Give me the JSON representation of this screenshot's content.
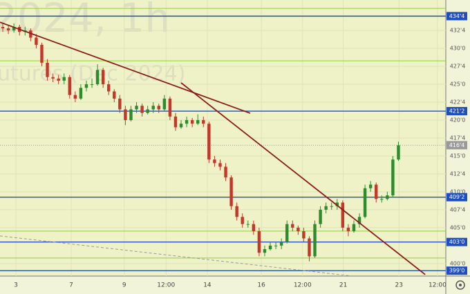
{
  "chart_data": {
    "type": "candlestick",
    "watermark": [
      "2024, 1h",
      "utures (Dec 2024)"
    ],
    "up_color": "#2e8b2e",
    "down_color": "#c0392b",
    "background": "#eef2c6",
    "grid": true,
    "xlim": [
      0,
      80
    ],
    "xticks": [
      {
        "value": 2.85,
        "label": "3"
      },
      {
        "value": 12.78,
        "label": "7"
      },
      {
        "value": 22.3,
        "label": "9"
      },
      {
        "value": 29.8,
        "label": "12:00"
      },
      {
        "value": 37.2,
        "label": "14"
      },
      {
        "value": 46.9,
        "label": "16"
      },
      {
        "value": 54.3,
        "label": "12:00"
      },
      {
        "value": 61.6,
        "label": "21"
      },
      {
        "value": 71.6,
        "label": "23"
      },
      {
        "value": 78.5,
        "label": "12:00"
      }
    ],
    "ylim": [
      398.25,
      436.75
    ],
    "yticks": [
      {
        "value": 432.5,
        "label": "432'4"
      },
      {
        "value": 430,
        "label": "430'0"
      },
      {
        "value": 427.5,
        "label": "427'4"
      },
      {
        "value": 425,
        "label": "425'0"
      },
      {
        "value": 422.5,
        "label": "422'4"
      },
      {
        "value": 420,
        "label": "420'0"
      },
      {
        "value": 417.5,
        "label": "417'4"
      },
      {
        "value": 415,
        "label": "415'0"
      },
      {
        "value": 412.5,
        "label": "412'4"
      },
      {
        "value": 410,
        "label": "410'0"
      },
      {
        "value": 407.5,
        "label": "407'4"
      },
      {
        "value": 405,
        "label": "405'0"
      },
      {
        "value": 400,
        "label": "400'0"
      }
    ],
    "levels": [
      {
        "value": 434.5,
        "label": "434'4",
        "color": "#1f4fbf"
      },
      {
        "value": 421.25,
        "label": "421'2",
        "color": "#1f4fbf"
      },
      {
        "value": 409.25,
        "label": "409'2",
        "color": "#1f4fbf"
      },
      {
        "value": 403,
        "label": "403'0",
        "color": "#1f4fbf"
      },
      {
        "value": 399,
        "label": "399'0",
        "color": "#1f4fbf"
      },
      {
        "value": 416.5,
        "label": "416'4",
        "color": "#9a9a9a"
      }
    ],
    "support_lines": [
      {
        "value": 435.58,
        "color": "#8fcf3f"
      },
      {
        "value": 428.27,
        "color": "#8fcf3f"
      },
      {
        "value": 404.52,
        "color": "#8fcf3f"
      },
      {
        "value": 400.77,
        "color": "#8fcf3f"
      }
    ],
    "trendlines": [
      {
        "x": [
          0,
          44.9
        ],
        "y": [
          433.65,
          420.96
        ],
        "color": "#8b1a1a",
        "dash": false
      },
      {
        "x": [
          32.5,
          76.3
        ],
        "y": [
          425.2,
          398.46
        ],
        "color": "#8b1a1a",
        "dash": false
      },
      {
        "x": [
          0,
          62.6
        ],
        "y": [
          403.85,
          398.3
        ],
        "color": "#999999",
        "dash": true
      }
    ],
    "ohlc": [
      [
        433,
        433.5,
        432.3,
        432.8
      ],
      [
        432.8,
        433.3,
        432,
        432.5
      ],
      [
        432.5,
        433.5,
        432.2,
        433
      ],
      [
        433,
        433.3,
        431.8,
        432.3
      ],
      [
        432.3,
        433,
        431.8,
        432.5
      ],
      [
        432.5,
        432.8,
        431,
        431.5
      ],
      [
        431.5,
        432,
        430,
        430.5
      ],
      [
        430.5,
        430.8,
        427.5,
        428
      ],
      [
        428,
        428.5,
        425.5,
        426
      ],
      [
        426,
        426.5,
        425.3,
        425.8
      ],
      [
        425.8,
        426.3,
        425,
        425.5
      ],
      [
        425.5,
        426.5,
        425,
        426
      ],
      [
        426,
        426.3,
        423,
        423.5
      ],
      [
        423.5,
        424,
        422.5,
        423
      ],
      [
        423,
        425,
        422.8,
        424.5
      ],
      [
        424.5,
        425.5,
        424,
        425
      ],
      [
        425,
        425.8,
        424.5,
        425
      ],
      [
        425,
        427.8,
        424.8,
        427
      ],
      [
        427,
        427.3,
        424.5,
        425
      ],
      [
        425,
        425.5,
        423.5,
        424
      ],
      [
        424,
        424.3,
        422.5,
        423
      ],
      [
        423,
        423.5,
        421,
        421.5
      ],
      [
        421.5,
        422,
        419.3,
        420
      ],
      [
        420,
        422,
        419.8,
        421.5
      ],
      [
        421.5,
        422.5,
        421,
        422
      ],
      [
        422,
        422.3,
        420.5,
        421
      ],
      [
        421,
        422,
        420.8,
        421.5
      ],
      [
        421.5,
        422.5,
        421,
        422
      ],
      [
        422,
        422.3,
        421,
        421.5
      ],
      [
        421.5,
        423.5,
        421.3,
        423
      ],
      [
        423,
        423.3,
        420,
        420.5
      ],
      [
        420.5,
        421,
        418.5,
        419
      ],
      [
        419,
        420,
        418.8,
        419.5
      ],
      [
        419.5,
        420.5,
        419,
        420
      ],
      [
        420,
        420.3,
        419,
        419.5
      ],
      [
        419.5,
        420.8,
        419.3,
        420
      ],
      [
        420,
        420.5,
        419,
        419.5
      ],
      [
        419.5,
        419.8,
        414,
        414.5
      ],
      [
        414.5,
        415,
        413.5,
        414
      ],
      [
        414,
        414.5,
        413,
        413.5
      ],
      [
        413.5,
        414,
        411.5,
        412
      ],
      [
        412,
        412.3,
        407.5,
        408
      ],
      [
        408,
        408.5,
        406,
        406.5
      ],
      [
        406.5,
        407,
        405,
        405.5
      ],
      [
        405.5,
        406,
        405,
        405.5
      ],
      [
        405.5,
        406,
        404,
        404.5
      ],
      [
        404.5,
        405,
        401,
        401.5
      ],
      [
        401.5,
        402.5,
        401,
        402
      ],
      [
        402,
        403,
        401.8,
        402.5
      ],
      [
        402.5,
        403,
        402,
        402.5
      ],
      [
        402.5,
        403.5,
        402,
        403
      ],
      [
        403,
        406,
        402.8,
        405.5
      ],
      [
        405.5,
        406,
        404.5,
        405
      ],
      [
        405,
        405.3,
        404,
        404.5
      ],
      [
        404.5,
        405,
        403,
        403.5
      ],
      [
        403.5,
        403.8,
        400.3,
        401
      ],
      [
        401,
        406,
        400.8,
        405.5
      ],
      [
        405.5,
        408,
        405,
        407.5
      ],
      [
        407.5,
        408.5,
        407,
        408
      ],
      [
        408,
        408.5,
        407.5,
        408
      ],
      [
        408,
        409,
        407.5,
        408.5
      ],
      [
        408.5,
        408.8,
        404.5,
        405
      ],
      [
        405,
        405.5,
        403.8,
        404.5
      ],
      [
        404.5,
        406,
        404.3,
        405.5
      ],
      [
        405.5,
        407,
        405,
        406.5
      ],
      [
        406.5,
        411,
        406.3,
        410.5
      ],
      [
        410.5,
        411.5,
        410,
        411
      ],
      [
        411,
        411.3,
        408.5,
        409
      ],
      [
        409,
        409.5,
        408.5,
        409
      ],
      [
        409,
        410,
        408.8,
        409.5
      ],
      [
        409.5,
        415,
        409.3,
        414.5
      ],
      [
        414.5,
        417,
        414.3,
        416.5
      ]
    ]
  }
}
